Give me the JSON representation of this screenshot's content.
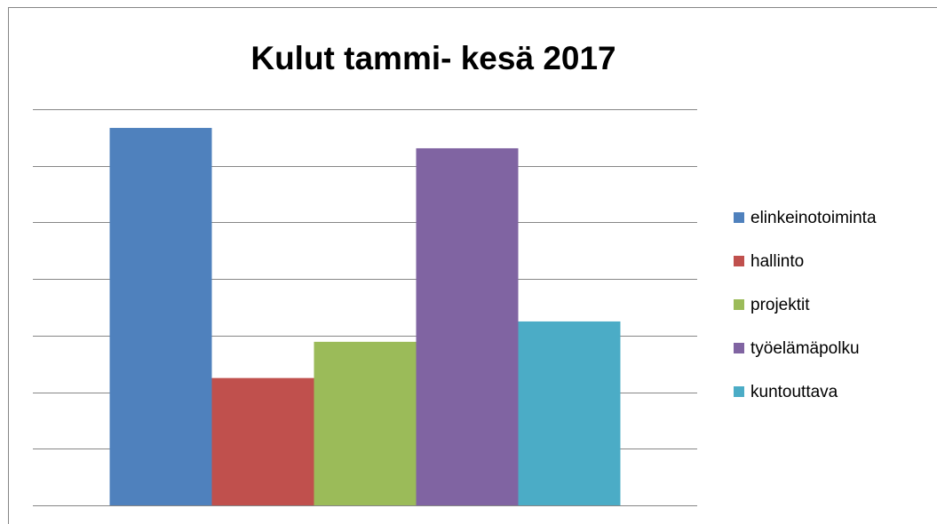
{
  "chart_data": {
    "type": "bar",
    "title": "Kulut tammi- kesä 2017",
    "categories": [
      null
    ],
    "series": [
      {
        "name": "elinkeinotoiminta",
        "color": "#4f81bd",
        "values": [
          6.67
        ]
      },
      {
        "name": "hallinto",
        "color": "#c0504d",
        "values": [
          2.25
        ]
      },
      {
        "name": "projektit",
        "color": "#9bbb59",
        "values": [
          2.89
        ]
      },
      {
        "name": "työelämäpolku",
        "color": "#8064a2",
        "values": [
          6.31
        ]
      },
      {
        "name": "kuntouttava",
        "color": "#4bacc6",
        "values": [
          3.25
        ]
      }
    ],
    "ylim": [
      0,
      7
    ],
    "yticks": [
      0,
      1,
      2,
      3,
      4,
      5,
      6,
      7
    ],
    "grid": true,
    "legend": "right"
  }
}
